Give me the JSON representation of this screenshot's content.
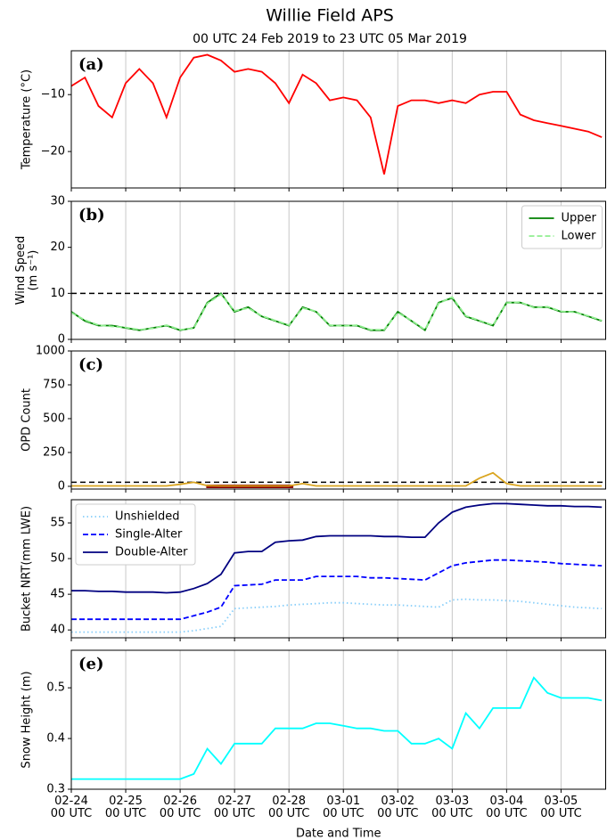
{
  "chart_data": [
    {
      "type": "line",
      "title": "Willie Field APS",
      "subtitle": "00 UTC 24 Feb 2019  to  23 UTC 05 Mar 2019",
      "panel_label": "(a)",
      "ylabel": "Temperature (°C)",
      "x": [
        0,
        0.25,
        0.5,
        0.75,
        1,
        1.25,
        1.5,
        1.75,
        2,
        2.25,
        2.5,
        2.75,
        3,
        3.25,
        3.5,
        3.75,
        4,
        4.25,
        4.5,
        4.75,
        5,
        5.25,
        5.5,
        5.75,
        6,
        6.25,
        6.5,
        6.75,
        7,
        7.25,
        7.5,
        7.75,
        8,
        8.25,
        8.5,
        8.75,
        9,
        9.25,
        9.5,
        9.75
      ],
      "xlim": [
        0,
        9.82
      ],
      "xticks": [
        0,
        1,
        2,
        3,
        4,
        5,
        6,
        7,
        8,
        9
      ],
      "grid": true,
      "ylim": [
        -26.4,
        -2.3
      ],
      "yticks": [
        {
          "value": -20,
          "label": "−20"
        },
        {
          "value": -10,
          "label": "−10"
        }
      ],
      "series": [
        {
          "name": "Temperature",
          "color": "#ff0000",
          "style": "solid",
          "values": [
            -8.5,
            -7,
            -12,
            -14,
            -8,
            -5.5,
            -8,
            -14,
            -7,
            -3.5,
            -3,
            -4,
            -6,
            -5.5,
            -6,
            -8,
            -11.5,
            -6.5,
            -8,
            -11,
            -10.5,
            -11,
            -14,
            -24,
            -12,
            -11,
            -11,
            -11.5,
            -11,
            -11.5,
            -10,
            -9.5,
            -9.5,
            -13.5,
            -14.5,
            -15,
            -15.5,
            -16,
            -16.5,
            -17.5
          ]
        }
      ]
    },
    {
      "type": "line",
      "panel_label": "(b)",
      "ylabel": "Wind Speed\n(m s⁻¹)",
      "x": [
        0,
        0.25,
        0.5,
        0.75,
        1,
        1.25,
        1.5,
        1.75,
        2,
        2.25,
        2.5,
        2.75,
        3,
        3.25,
        3.5,
        3.75,
        4,
        4.25,
        4.5,
        4.75,
        5,
        5.25,
        5.5,
        5.75,
        6,
        6.25,
        6.5,
        6.75,
        7,
        7.25,
        7.5,
        7.75,
        8,
        8.25,
        8.5,
        8.75,
        9,
        9.25,
        9.5,
        9.75
      ],
      "xlim": [
        0,
        9.82
      ],
      "xticks": [
        0,
        1,
        2,
        3,
        4,
        5,
        6,
        7,
        8,
        9
      ],
      "grid": true,
      "ylim": [
        0,
        30
      ],
      "yticks": [
        0,
        10,
        20,
        30
      ],
      "threshold": 10,
      "legend": "upper right",
      "series": [
        {
          "name": "Upper",
          "color": "#008000",
          "style": "solid",
          "values": [
            6,
            4,
            3,
            3,
            2.5,
            2,
            2.5,
            3,
            2,
            2.5,
            8,
            10,
            6,
            7,
            5,
            4,
            3,
            7,
            6,
            3,
            3,
            3,
            2,
            2,
            6,
            4,
            2,
            8,
            9,
            5,
            4,
            3,
            8,
            8,
            7,
            7,
            6,
            6,
            5,
            4
          ]
        },
        {
          "name": "Lower",
          "color": "#90ee90",
          "style": "dashed",
          "values": [
            5.8,
            4.2,
            3.1,
            2.8,
            2.6,
            2.1,
            2.4,
            3.1,
            2.1,
            2.4,
            7.8,
            9.8,
            6.2,
            6.8,
            5.1,
            4.1,
            3.1,
            6.8,
            6.1,
            3.1,
            2.9,
            3.1,
            2.1,
            2.1,
            5.8,
            4.1,
            2.1,
            7.8,
            9.2,
            5.1,
            4.1,
            3.1,
            7.9,
            8.1,
            6.9,
            7.1,
            6.1,
            5.9,
            5.1,
            4.1
          ]
        }
      ]
    },
    {
      "type": "line",
      "panel_label": "(c)",
      "ylabel": "OPD Count",
      "x": [
        0,
        0.25,
        0.5,
        0.75,
        1,
        1.25,
        1.5,
        1.75,
        2,
        2.25,
        2.5,
        2.75,
        3,
        3.25,
        3.5,
        3.75,
        4,
        4.25,
        4.5,
        4.75,
        5,
        5.25,
        5.5,
        5.75,
        6,
        6.25,
        6.5,
        6.75,
        7,
        7.25,
        7.5,
        7.75,
        8,
        8.25,
        8.5,
        8.75,
        9,
        9.25,
        9.5,
        9.75
      ],
      "xlim": [
        0,
        9.82
      ],
      "xticks": [
        0,
        1,
        2,
        3,
        4,
        5,
        6,
        7,
        8,
        9
      ],
      "grid": true,
      "ylim": [
        -20,
        1000
      ],
      "yticks": [
        0,
        250,
        500,
        750,
        1000
      ],
      "threshold": 30,
      "highlight_span": [
        2.48,
        4.08
      ],
      "highlight_color": "#8b0000",
      "series": [
        {
          "name": "OPD",
          "color": "#daa520",
          "style": "solid",
          "values": [
            3,
            3,
            3,
            3,
            3,
            3,
            3,
            3,
            15,
            30,
            5,
            3,
            3,
            3,
            3,
            3,
            3,
            20,
            3,
            3,
            3,
            3,
            3,
            3,
            3,
            3,
            3,
            3,
            3,
            3,
            60,
            100,
            20,
            3,
            3,
            3,
            3,
            3,
            3,
            3
          ]
        }
      ]
    },
    {
      "type": "line",
      "panel_label": "(d)",
      "ylabel": "Bucket NRT(mm LWE)",
      "x": [
        0,
        0.25,
        0.5,
        0.75,
        1,
        1.25,
        1.5,
        1.75,
        2,
        2.25,
        2.5,
        2.75,
        3,
        3.25,
        3.5,
        3.75,
        4,
        4.25,
        4.5,
        4.75,
        5,
        5.25,
        5.5,
        5.75,
        6,
        6.25,
        6.5,
        6.75,
        7,
        7.25,
        7.5,
        7.75,
        8,
        8.25,
        8.5,
        8.75,
        9,
        9.25,
        9.5,
        9.75
      ],
      "xlim": [
        0,
        9.82
      ],
      "xticks": [
        0,
        1,
        2,
        3,
        4,
        5,
        6,
        7,
        8,
        9
      ],
      "grid": true,
      "ylim": [
        38.9,
        58.25
      ],
      "yticks": [
        40,
        45,
        50,
        55
      ],
      "legend": "upper left",
      "series": [
        {
          "name": "Unshielded",
          "color": "#87cefa",
          "style": "dotted",
          "values": [
            39.7,
            39.7,
            39.7,
            39.7,
            39.7,
            39.7,
            39.7,
            39.7,
            39.7,
            39.9,
            40.2,
            40.5,
            43,
            43.1,
            43.2,
            43.3,
            43.5,
            43.6,
            43.7,
            43.8,
            43.8,
            43.7,
            43.6,
            43.5,
            43.5,
            43.4,
            43.3,
            43.2,
            44.2,
            44.3,
            44.2,
            44.2,
            44.1,
            44,
            43.8,
            43.6,
            43.4,
            43.2,
            43.1,
            43
          ]
        },
        {
          "name": "Single-Alter",
          "color": "#0000ff",
          "style": "dashed",
          "values": [
            41.5,
            41.5,
            41.5,
            41.5,
            41.5,
            41.5,
            41.5,
            41.5,
            41.5,
            42,
            42.5,
            43.2,
            46.2,
            46.3,
            46.4,
            47,
            47,
            47,
            47.5,
            47.5,
            47.5,
            47.5,
            47.3,
            47.3,
            47.2,
            47.1,
            47,
            48,
            49,
            49.4,
            49.6,
            49.8,
            49.8,
            49.7,
            49.6,
            49.5,
            49.3,
            49.2,
            49.1,
            49
          ]
        },
        {
          "name": "Double-Alter",
          "color": "#000080",
          "style": "solid",
          "values": [
            45.5,
            45.5,
            45.4,
            45.4,
            45.3,
            45.3,
            45.3,
            45.2,
            45.3,
            45.8,
            46.5,
            47.8,
            50.8,
            51,
            51,
            52.3,
            52.5,
            52.6,
            53.1,
            53.2,
            53.2,
            53.2,
            53.2,
            53.1,
            53.1,
            53,
            53,
            55,
            56.5,
            57.2,
            57.5,
            57.7,
            57.7,
            57.6,
            57.5,
            57.4,
            57.4,
            57.3,
            57.3,
            57.2
          ]
        }
      ]
    },
    {
      "type": "line",
      "panel_label": "(e)",
      "ylabel": "Snow Height (m)",
      "xlabel": "Date and Time",
      "x": [
        0,
        0.25,
        0.5,
        0.75,
        1,
        1.25,
        1.5,
        1.75,
        2,
        2.25,
        2.5,
        2.75,
        3,
        3.25,
        3.5,
        3.75,
        4,
        4.25,
        4.5,
        4.75,
        5,
        5.25,
        5.5,
        5.75,
        6,
        6.25,
        6.5,
        6.75,
        7,
        7.25,
        7.5,
        7.75,
        8,
        8.25,
        8.5,
        8.75,
        9,
        9.25,
        9.5,
        9.75
      ],
      "xlim": [
        0,
        9.82
      ],
      "grid": true,
      "xticks": [
        {
          "value": 0,
          "label": "02-24\n00 UTC"
        },
        {
          "value": 1,
          "label": "02-25\n00 UTC"
        },
        {
          "value": 2,
          "label": "02-26\n00 UTC"
        },
        {
          "value": 3,
          "label": "02-27\n00 UTC"
        },
        {
          "value": 4,
          "label": "02-28\n00 UTC"
        },
        {
          "value": 5,
          "label": "03-01\n00 UTC"
        },
        {
          "value": 6,
          "label": "03-02\n00 UTC"
        },
        {
          "value": 7,
          "label": "03-03\n00 UTC"
        },
        {
          "value": 8,
          "label": "03-04\n00 UTC"
        },
        {
          "value": 9,
          "label": "03-05\n00 UTC"
        }
      ],
      "ylim": [
        0.3,
        0.574
      ],
      "yticks": [
        0.3,
        0.4,
        0.5
      ],
      "series": [
        {
          "name": "Snow Height",
          "color": "#00ffff",
          "style": "solid",
          "values": [
            0.32,
            0.32,
            0.32,
            0.32,
            0.32,
            0.32,
            0.32,
            0.32,
            0.32,
            0.33,
            0.38,
            0.35,
            0.39,
            0.39,
            0.39,
            0.42,
            0.42,
            0.42,
            0.43,
            0.43,
            0.425,
            0.42,
            0.42,
            0.415,
            0.415,
            0.39,
            0.39,
            0.4,
            0.38,
            0.45,
            0.42,
            0.46,
            0.46,
            0.46,
            0.52,
            0.49,
            0.48,
            0.48,
            0.48,
            0.475
          ]
        }
      ]
    }
  ]
}
